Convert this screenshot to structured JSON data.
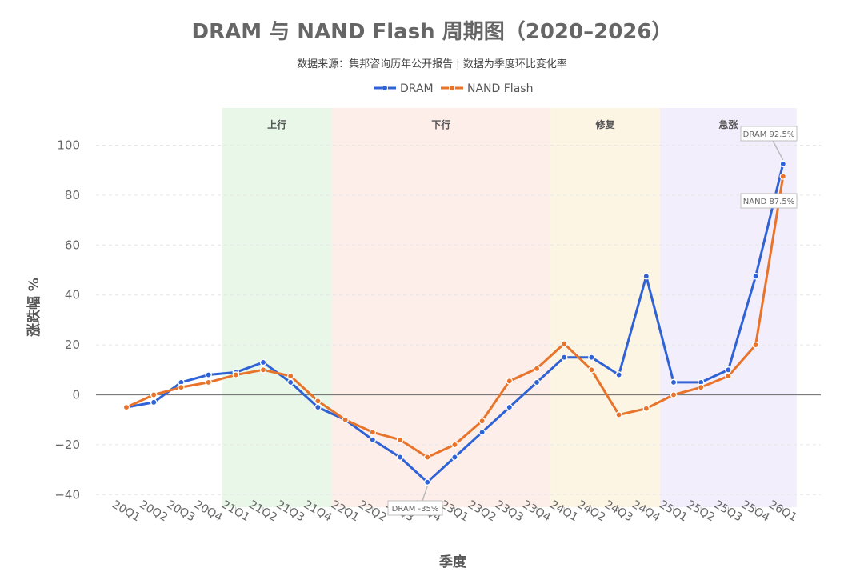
{
  "chart_data": {
    "type": "line",
    "title": "DRAM 与 NAND Flash 周期图（2020–2026）",
    "subtitle": "数据来源：集邦咨询历年公开报告 | 数据为季度环比变化率",
    "xlabel": "季度",
    "ylabel": "涨跌幅 %",
    "ylim": [
      -45,
      112
    ],
    "yticks": [
      -40,
      -20,
      0,
      20,
      40,
      60,
      80,
      100
    ],
    "grid": true,
    "legend_position": "top-center",
    "categories": [
      "20Q1",
      "20Q2",
      "20Q3",
      "20Q4",
      "21Q1",
      "21Q2",
      "21Q3",
      "21Q4",
      "22Q1",
      "22Q2",
      "22Q3",
      "22Q4",
      "23Q1",
      "23Q2",
      "23Q3",
      "23Q4",
      "24Q1",
      "24Q2",
      "24Q3",
      "24Q4",
      "25Q1",
      "25Q2",
      "25Q3",
      "25Q4",
      "26Q1"
    ],
    "series": [
      {
        "name": "DRAM",
        "color": "#2f62d4",
        "values": [
          -5,
          -3,
          5,
          8,
          9,
          13,
          5,
          -5,
          -10,
          -18,
          -25,
          -35,
          -25,
          -15,
          -5,
          5,
          15,
          15,
          8,
          47.5,
          5,
          5,
          10,
          47.5,
          92.5
        ]
      },
      {
        "name": "NAND Flash",
        "color": "#e8732a",
        "values": [
          -5,
          0,
          3,
          5,
          8,
          10,
          7.5,
          -2.5,
          -10,
          -15,
          -18,
          -25,
          -20,
          -10.5,
          5.5,
          10.5,
          20.5,
          10,
          -8,
          -5.5,
          0,
          3,
          7.5,
          20,
          87.5
        ]
      }
    ],
    "phases": [
      {
        "label": "上行",
        "start": "20Q4",
        "end": "21Q4",
        "color": "#e9f7e9"
      },
      {
        "label": "下行",
        "start": "21Q4",
        "end": "23Q4",
        "color": "#fdeeea"
      },
      {
        "label": "修复",
        "start": "23Q4",
        "end": "24Q4",
        "color": "#fdf5e4"
      },
      {
        "label": "急涨",
        "start": "24Q4",
        "end": "26Q1",
        "color": "#f3eefc"
      }
    ],
    "annotations": [
      {
        "text": "DRAM 92.5%",
        "series": 0,
        "category": "26Q1",
        "value": 92.5
      },
      {
        "text": "NAND 87.5%",
        "series": 1,
        "category": "26Q1",
        "value": 87.5
      },
      {
        "text": "DRAM -35%",
        "series": 0,
        "category": "22Q4",
        "value": -35
      }
    ]
  }
}
